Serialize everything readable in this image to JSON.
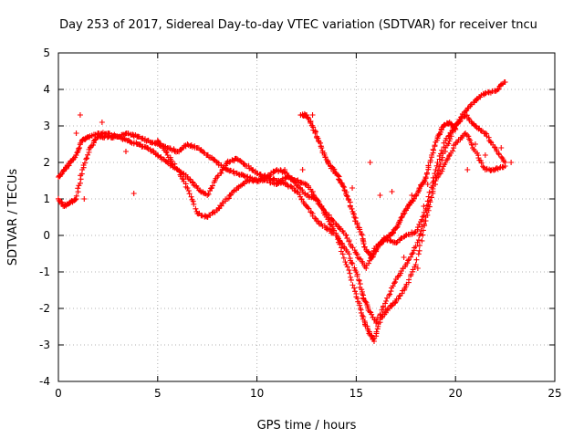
{
  "chart_data": {
    "type": "scatter",
    "title": "Day 253 of 2017, Sidereal Day-to-day VTEC variation (SDTVAR) for receiver tncu",
    "xlabel": "GPS time / hours",
    "ylabel": "SDTVAR / TECUs",
    "xlim": [
      0,
      25
    ],
    "ylim": [
      -4,
      5
    ],
    "x_ticks": [
      "0",
      "5",
      "10",
      "15",
      "20",
      "25"
    ],
    "y_ticks": [
      "-4",
      "-3",
      "-2",
      "-1",
      "0",
      "1",
      "2",
      "3",
      "4",
      "5"
    ],
    "grid": true,
    "legend": "none",
    "marker": "plus",
    "color": "#ff0000",
    "series": [
      {
        "x": [
          0.0,
          0.3,
          0.6,
          0.9,
          1.2,
          1.5,
          2.0,
          2.5,
          3.0,
          3.5,
          4.0,
          4.5,
          5.0,
          5.5,
          6.0,
          6.5,
          7.0,
          7.5,
          8.0,
          8.5,
          9.0,
          9.5,
          10.0,
          10.5,
          11.0,
          11.5,
          12.0,
          12.5,
          13.0,
          13.5,
          14.0,
          14.5,
          15.0,
          15.3,
          15.6,
          15.9,
          16.2,
          16.6,
          17.0,
          17.5,
          18.0,
          18.5,
          19.0,
          19.5,
          20.0,
          20.5,
          21.0,
          21.5,
          22.0,
          22.5
        ],
        "y": [
          1.6,
          1.8,
          2.0,
          2.2,
          2.6,
          2.7,
          2.8,
          2.8,
          2.7,
          2.8,
          2.7,
          2.6,
          2.5,
          2.4,
          2.3,
          2.5,
          2.4,
          2.2,
          2.0,
          1.8,
          1.7,
          1.6,
          1.5,
          1.5,
          1.4,
          1.6,
          1.5,
          1.4,
          1.0,
          0.5,
          0.0,
          -0.8,
          -1.6,
          -2.2,
          -2.6,
          -2.9,
          -2.3,
          -2.0,
          -1.8,
          -1.4,
          -0.8,
          0.4,
          1.6,
          2.4,
          3.0,
          3.4,
          3.7,
          3.9,
          3.95,
          4.2
        ]
      },
      {
        "x": [
          0.0,
          0.3,
          0.6,
          0.9,
          1.2,
          1.6,
          2.0,
          2.5,
          3.0,
          3.5,
          4.0,
          4.5,
          5.0,
          5.5,
          6.0,
          6.5,
          7.0,
          7.5,
          8.0,
          8.5,
          9.0,
          9.5,
          10.0,
          10.5,
          11.0,
          11.5,
          12.0,
          12.5,
          13.0,
          13.5,
          14.0,
          14.5,
          15.0,
          15.3,
          15.6,
          16.0,
          16.5,
          17.0,
          17.5,
          18.0,
          18.5,
          19.0,
          19.5,
          20.0,
          20.5,
          21.0,
          21.5,
          22.0,
          22.5
        ],
        "y": [
          1.0,
          0.8,
          0.9,
          1.0,
          1.8,
          2.4,
          2.7,
          2.7,
          2.7,
          2.6,
          2.5,
          2.4,
          2.2,
          2.0,
          1.8,
          1.6,
          1.3,
          1.1,
          1.6,
          2.0,
          2.1,
          1.9,
          1.7,
          1.6,
          1.5,
          1.4,
          1.2,
          0.8,
          0.4,
          0.2,
          0.0,
          -0.4,
          -1.0,
          -1.6,
          -2.0,
          -2.4,
          -1.8,
          -1.2,
          -0.8,
          -0.3,
          0.5,
          1.5,
          2.0,
          2.5,
          2.8,
          2.3,
          1.8,
          1.8,
          1.9
        ]
      },
      {
        "x": [
          5.0,
          5.5,
          6.0,
          6.5,
          7.0,
          7.5,
          8.0,
          8.5,
          9.0,
          9.5,
          10.0,
          10.5,
          11.0,
          11.5,
          12.0,
          12.5,
          13.0,
          13.5,
          14.0,
          14.5,
          15.0,
          15.5,
          16.0,
          16.5,
          17.0,
          17.5,
          18.0,
          18.5,
          19.0,
          19.5,
          20.0,
          20.5,
          21.0,
          21.5,
          22.0,
          22.5
        ],
        "y": [
          2.6,
          2.2,
          1.8,
          1.3,
          0.6,
          0.5,
          0.7,
          1.0,
          1.3,
          1.5,
          1.5,
          1.6,
          1.8,
          1.7,
          1.4,
          1.1,
          1.0,
          0.6,
          0.3,
          0.0,
          -0.5,
          -0.9,
          -0.3,
          -0.1,
          -0.2,
          0.0,
          0.1,
          0.7,
          1.8,
          2.6,
          3.0,
          3.3,
          3.0,
          2.8,
          2.4,
          2.0
        ]
      },
      {
        "x": [
          12.2,
          12.5,
          12.8,
          13.1,
          13.4,
          13.7,
          14.0,
          14.3,
          14.6,
          14.9,
          15.2,
          15.5,
          15.8,
          16.1,
          16.4,
          16.7,
          17.0,
          17.3,
          17.6,
          17.9,
          18.2,
          18.5,
          18.8,
          19.1,
          19.4,
          19.7,
          20.0
        ],
        "y": [
          3.3,
          3.3,
          3.0,
          2.6,
          2.2,
          1.9,
          1.7,
          1.4,
          1.0,
          0.5,
          0.1,
          -0.4,
          -0.6,
          -0.3,
          -0.1,
          0.0,
          0.2,
          0.5,
          0.8,
          1.0,
          1.3,
          1.6,
          2.2,
          2.7,
          3.0,
          3.1,
          2.9
        ]
      },
      {
        "x": [
          0.9,
          1.1,
          1.3,
          2.2,
          3.4,
          3.8,
          10.5,
          11.4,
          12.3,
          12.8,
          14.8,
          15.7,
          16.2,
          16.8,
          17.4,
          17.8,
          18.1,
          18.4,
          18.6,
          20.6,
          21.0,
          21.5,
          22.3,
          22.8
        ],
        "y": [
          2.8,
          3.3,
          1.0,
          3.1,
          2.3,
          1.15,
          1.6,
          1.8,
          1.8,
          3.3,
          1.3,
          2.0,
          1.1,
          1.2,
          -0.6,
          1.1,
          -0.9,
          0.8,
          1.4,
          1.8,
          2.5,
          2.2,
          2.4,
          2.0
        ]
      }
    ]
  }
}
